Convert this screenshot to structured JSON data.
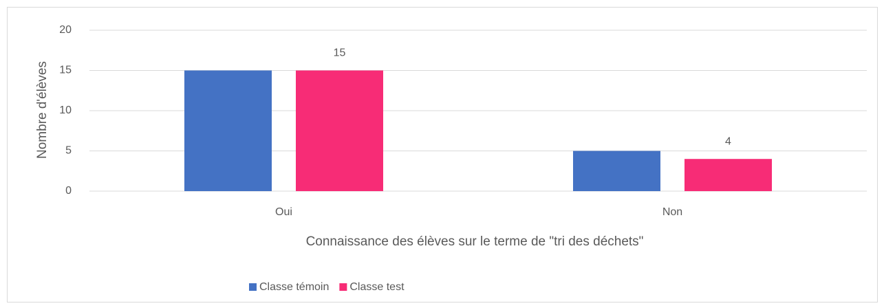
{
  "chart_data": {
    "type": "bar",
    "x_label": "Connaissance des élèves sur le terme de \"tri des déchets\"",
    "y_label": "Nombre d'élèves",
    "categories": [
      "Oui",
      "Non"
    ],
    "series": [
      {
        "name": "Classe témoin",
        "color": "#4472c4",
        "values": [
          15,
          5
        ],
        "data_labels": false
      },
      {
        "name": "Classe test",
        "color": "#f72c76",
        "values": [
          15,
          4
        ],
        "data_labels": true
      }
    ],
    "ylim": [
      0,
      20
    ],
    "yticks": [
      0,
      5,
      10,
      15,
      20
    ],
    "grid": true,
    "legend": "bottom"
  }
}
